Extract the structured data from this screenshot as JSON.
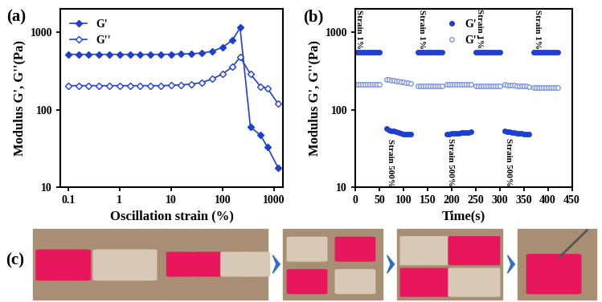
{
  "chart_data": [
    {
      "type": "line",
      "title": "(a)",
      "x_label": "Oscillation strain (%)",
      "y_label": "Modulus G', G''(Pa)",
      "log": true,
      "legend": "upper left",
      "tick_labels": true,
      "x": [
        0.1,
        0.158,
        0.251,
        0.398,
        0.631,
        1,
        1.58,
        2.51,
        3.98,
        6.31,
        10,
        15.8,
        25.1,
        39.8,
        63.1,
        100,
        158,
        220,
        350,
        550,
        750,
        1200
      ],
      "series": [
        {
          "name": "G'",
          "color": "#1f3fd1",
          "marker": "filled_diamond",
          "line_style": "solid",
          "values": [
            520,
            520,
            520,
            520,
            520,
            520,
            520,
            520,
            520,
            520,
            522,
            525,
            530,
            540,
            570,
            640,
            800,
            1150,
            60,
            47,
            33,
            18
          ]
        },
        {
          "name": "G''",
          "color": "#1f3fd1",
          "marker": "open_diamond",
          "line_style": "solid",
          "values": [
            205,
            205,
            205,
            205,
            205,
            205,
            205,
            205,
            205,
            205,
            207,
            210,
            215,
            225,
            250,
            290,
            360,
            480,
            290,
            200,
            190,
            120
          ]
        }
      ],
      "xlim": [
        0.07,
        1500
      ],
      "ylim": [
        10,
        2000
      ],
      "xticks": [
        0.1,
        1,
        10,
        100,
        1000
      ],
      "yticks": [
        10,
        100,
        1000
      ]
    },
    {
      "type": "scatter",
      "title": "(b)",
      "x_label": "Time(s)",
      "y_label": "Modulus G', G''(Pa)",
      "log": "y",
      "legend": "upper center",
      "tick_labels": true,
      "x": [
        0,
        5,
        10,
        15,
        20,
        25,
        30,
        35,
        40,
        45,
        50,
        65,
        70,
        75,
        80,
        85,
        90,
        95,
        100,
        105,
        110,
        115,
        130,
        135,
        140,
        145,
        150,
        155,
        160,
        165,
        170,
        175,
        180,
        190,
        195,
        200,
        205,
        210,
        215,
        220,
        225,
        230,
        235,
        240,
        250,
        255,
        260,
        265,
        270,
        275,
        280,
        285,
        290,
        295,
        300,
        310,
        315,
        320,
        325,
        330,
        335,
        340,
        345,
        350,
        355,
        360,
        370,
        375,
        380,
        385,
        390,
        395,
        400,
        405,
        410,
        415,
        420
      ],
      "series": [
        {
          "name": "G'",
          "color": "#1f3fd1",
          "marker": "filled_circle",
          "line_style": "none",
          "values": [
            550,
            550,
            550,
            550,
            550,
            550,
            550,
            550,
            550,
            550,
            550,
            57,
            55,
            54,
            53,
            52,
            51,
            50,
            49,
            49,
            48,
            48,
            550,
            550,
            550,
            550,
            550,
            550,
            550,
            550,
            550,
            550,
            550,
            49,
            49,
            50,
            50,
            50,
            50,
            51,
            51,
            51,
            51,
            52,
            560,
            560,
            560,
            560,
            560,
            560,
            560,
            560,
            560,
            560,
            560,
            53,
            52,
            52,
            51,
            51,
            50,
            50,
            50,
            49,
            49,
            49,
            550,
            550,
            550,
            550,
            550,
            550,
            550,
            550,
            550,
            550,
            550
          ]
        },
        {
          "name": "G''",
          "color": "#7f95e0",
          "marker": "open_circle",
          "line_style": "none",
          "values": [
            215,
            215,
            215,
            215,
            215,
            215,
            215,
            215,
            215,
            215,
            215,
            245,
            245,
            240,
            238,
            235,
            232,
            230,
            228,
            225,
            222,
            220,
            205,
            205,
            205,
            205,
            205,
            205,
            205,
            205,
            205,
            205,
            205,
            215,
            215,
            215,
            215,
            215,
            215,
            215,
            215,
            215,
            215,
            215,
            205,
            205,
            205,
            205,
            205,
            205,
            205,
            205,
            205,
            205,
            205,
            212,
            210,
            208,
            207,
            206,
            205,
            205,
            204,
            203,
            202,
            200,
            193,
            193,
            193,
            194,
            194,
            194,
            194,
            195,
            195,
            195,
            195
          ]
        }
      ],
      "annotations": [
        "Strain 1%",
        "Strain 500%",
        "Strain 1%",
        "Strain 500%",
        "Strain 1%",
        "Strain 500%",
        "Strain 1%"
      ],
      "xlim": [
        0,
        450
      ],
      "ylim": [
        10,
        2000
      ],
      "xticks": [
        0,
        50,
        100,
        150,
        200,
        250,
        300,
        350,
        400,
        450
      ],
      "yticks": [
        10,
        100,
        1000
      ]
    }
  ],
  "photo_panel": {
    "label": "(c)"
  }
}
